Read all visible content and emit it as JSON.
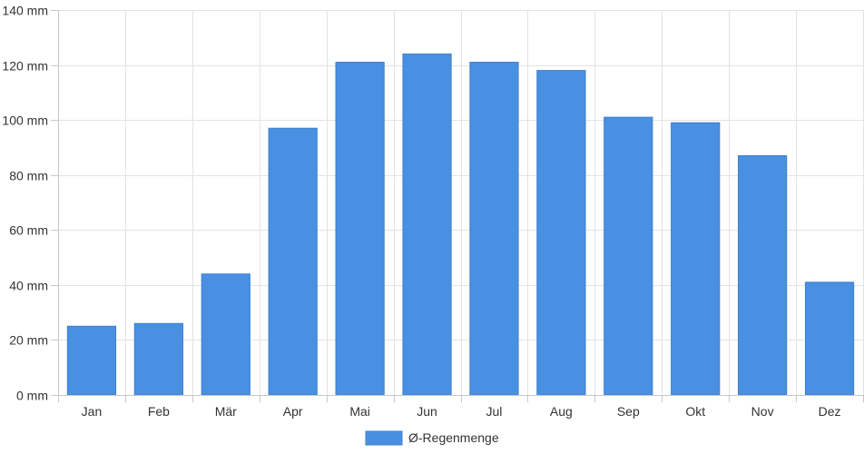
{
  "chart_data": {
    "type": "bar",
    "categories": [
      "Jan",
      "Feb",
      "Mär",
      "Apr",
      "Mai",
      "Jun",
      "Jul",
      "Aug",
      "Sep",
      "Okt",
      "Nov",
      "Dez"
    ],
    "series": [
      {
        "name": "Ø-Regenmenge",
        "values": [
          25,
          26,
          44,
          97,
          121,
          124,
          121,
          118,
          101,
          99,
          87,
          41
        ],
        "color": "#4a90e2",
        "border_color": "#3d7fd0"
      }
    ],
    "y_unit_suffix": " mm",
    "ylim": [
      0,
      140
    ],
    "y_ticks": [
      0,
      20,
      40,
      60,
      80,
      100,
      120,
      140
    ],
    "y_tick_labels": [
      "0 mm",
      "20 mm",
      "40 mm",
      "60 mm",
      "80 mm",
      "100 mm",
      "120 mm",
      "140 mm"
    ],
    "grid": true,
    "legend_position": "bottom-center"
  }
}
